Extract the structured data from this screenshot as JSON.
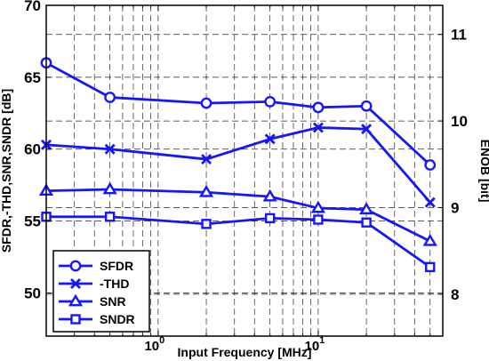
{
  "chart_data": {
    "type": "line",
    "xlabel": "Input Frequency [MHz]",
    "ylabel": "SFDR,-THD,SNR,SNDR [dB]",
    "y2label": "ENOB [bit]",
    "x_scale": "log",
    "xlim": [
      0.2,
      60
    ],
    "ylim": [
      47,
      70
    ],
    "y2lim": [
      7.516,
      11.336
    ],
    "x_ticks": [
      {
        "value": 1,
        "base": "10",
        "exp": "0"
      },
      {
        "value": 10,
        "base": "10",
        "exp": "1"
      }
    ],
    "y_ticks": [
      50,
      55,
      60,
      65,
      70
    ],
    "y2_ticks": [
      8,
      9,
      10,
      11
    ],
    "grid": true,
    "legend_position": "bottom-left",
    "line_color": "#1515ff",
    "x": [
      0.2,
      0.5,
      2,
      5,
      10,
      20,
      50
    ],
    "series": [
      {
        "name": "SFDR",
        "marker": "circle",
        "values": [
          66.0,
          63.6,
          63.2,
          63.3,
          62.9,
          63.0,
          58.9
        ]
      },
      {
        "name": "-THD",
        "marker": "x",
        "values": [
          60.3,
          60.0,
          59.3,
          60.7,
          61.5,
          61.4,
          56.3
        ]
      },
      {
        "name": "SNR",
        "marker": "triangle",
        "values": [
          57.1,
          57.2,
          57.0,
          56.7,
          55.9,
          55.8,
          53.6
        ]
      },
      {
        "name": "SNDR",
        "marker": "square",
        "values": [
          55.3,
          55.3,
          54.8,
          55.2,
          55.1,
          54.9,
          51.8
        ]
      }
    ]
  }
}
